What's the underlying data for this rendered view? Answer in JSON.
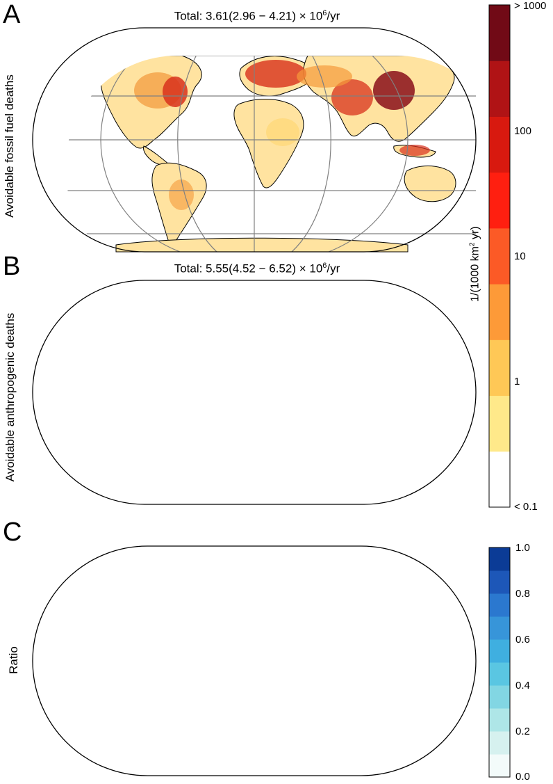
{
  "panels": [
    {
      "letter": "A",
      "title_prefix": "Total: 3.61(2.96 − 4.21) × 10",
      "title_exp": "6",
      "title_suffix": "/yr",
      "ylabel": "Avoidable fossil fuel deaths"
    },
    {
      "letter": "B",
      "title_prefix": "Total: 5.55(4.52 − 6.52) × 10",
      "title_exp": "6",
      "title_suffix": "/yr",
      "ylabel": "Avoidable anthropogenic deaths"
    },
    {
      "letter": "C",
      "title_prefix": "",
      "title_exp": "",
      "title_suffix": "",
      "ylabel": "Ratio"
    }
  ],
  "colorbar_deaths": {
    "ticks": [
      "> 1000",
      "100",
      "10",
      "1",
      "< 0.1"
    ],
    "label_prefix": "1/(1000 km",
    "label_exp": "2",
    "label_suffix": " yr)",
    "colors": [
      "#ffffff",
      "#ffe98a",
      "#ffc856",
      "#fd9a38",
      "#fc5a26",
      "#ff1f10",
      "#d8190f",
      "#b01315",
      "#710a16"
    ]
  },
  "colorbar_ratio": {
    "ticks": [
      "1.0",
      "0.8",
      "0.6",
      "0.4",
      "0.2",
      "0.0"
    ],
    "colors": [
      "#f3fbfa",
      "#d6f1ef",
      "#aee6e7",
      "#82d6e3",
      "#5ac6e2",
      "#3fafe0",
      "#3795d9",
      "#2b78cf",
      "#1d57b8",
      "#0b3b96"
    ]
  },
  "map_colors": {
    "land_base": "#fff8e7",
    "low": "#ffd87a",
    "mid": "#f59a3a",
    "high": "#d8311c",
    "very_high": "#8a0f1a",
    "ratio_low": "#e9f7f6",
    "ratio_mid": "#7ec8ec",
    "ratio_high": "#2f6ed0",
    "ratio_top": "#1a48a8"
  }
}
